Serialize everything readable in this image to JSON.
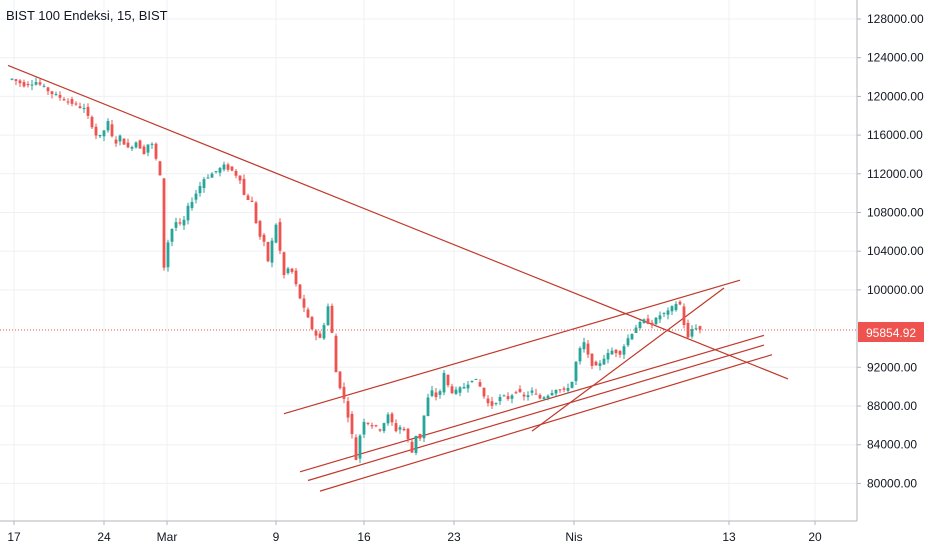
{
  "chart_data": {
    "type": "candlestick",
    "title": "BIST 100 Endeksi, 15, BIST",
    "colors": {
      "up": "#26a69a",
      "down": "#ef5350",
      "trendline": "#c0392b",
      "grid": "#eef0f3",
      "price_line": "#ef5350"
    },
    "y_axis": {
      "ylim": [
        75500,
        130000
      ],
      "ticks": [
        "128000.00",
        "124000.00",
        "120000.00",
        "116000.00",
        "112000.00",
        "108000.00",
        "104000.00",
        "100000.00",
        "92000.00",
        "88000.00",
        "84000.00",
        "80000.00"
      ]
    },
    "x_axis": {
      "ticks": [
        "17",
        "24",
        "Mar",
        "9",
        "16",
        "23",
        "Nis",
        "13",
        "20"
      ]
    },
    "current_price": {
      "value": 95854.92,
      "label": "95854.92"
    },
    "price_path": [
      {
        "t": 0,
        "v": 121800
      },
      {
        "t": 3,
        "v": 121200
      },
      {
        "t": 6,
        "v": 121500
      },
      {
        "t": 10,
        "v": 120300
      },
      {
        "t": 14,
        "v": 119500
      },
      {
        "t": 18,
        "v": 118700
      },
      {
        "t": 20,
        "v": 117000
      },
      {
        "t": 21.5,
        "v": 115500
      },
      {
        "t": 23,
        "v": 116500
      },
      {
        "t": 24,
        "v": 117300
      },
      {
        "t": 25.5,
        "v": 115000
      },
      {
        "t": 27,
        "v": 115800
      },
      {
        "t": 29,
        "v": 114600
      },
      {
        "t": 31,
        "v": 115300
      },
      {
        "t": 33,
        "v": 114200
      },
      {
        "t": 34.5,
        "v": 115500
      },
      {
        "t": 35.5,
        "v": 114500
      },
      {
        "t": 36.5,
        "v": 112500
      },
      {
        "t": 37.3,
        "v": 111200
      },
      {
        "t": 37.9,
        "v": 102000
      },
      {
        "t": 38.3,
        "v": 103500
      },
      {
        "t": 39.5,
        "v": 106000
      },
      {
        "t": 41,
        "v": 107000
      },
      {
        "t": 42.5,
        "v": 106500
      },
      {
        "t": 44,
        "v": 108500
      },
      {
        "t": 46,
        "v": 110000
      },
      {
        "t": 48,
        "v": 111500
      },
      {
        "t": 50,
        "v": 112000
      },
      {
        "t": 53,
        "v": 112800
      },
      {
        "t": 55,
        "v": 112300
      },
      {
        "t": 57,
        "v": 111500
      },
      {
        "t": 58,
        "v": 109800
      },
      {
        "t": 60,
        "v": 109000
      },
      {
        "t": 61,
        "v": 107000
      },
      {
        "t": 62,
        "v": 105500
      },
      {
        "t": 63,
        "v": 104800
      },
      {
        "t": 64,
        "v": 103000
      },
      {
        "t": 65,
        "v": 105000
      },
      {
        "t": 66,
        "v": 106800
      },
      {
        "t": 67,
        "v": 104000
      },
      {
        "t": 68,
        "v": 101500
      },
      {
        "t": 69.5,
        "v": 102500
      },
      {
        "t": 71,
        "v": 100500
      },
      {
        "t": 72.5,
        "v": 98500
      },
      {
        "t": 74,
        "v": 97000
      },
      {
        "t": 75.5,
        "v": 95500
      },
      {
        "t": 77,
        "v": 95000
      },
      {
        "t": 78,
        "v": 96500
      },
      {
        "t": 79,
        "v": 98300
      },
      {
        "t": 80,
        "v": 95500
      },
      {
        "t": 81,
        "v": 91500
      },
      {
        "t": 82,
        "v": 90000
      },
      {
        "t": 83.5,
        "v": 88000
      },
      {
        "t": 85,
        "v": 85000
      },
      {
        "t": 86,
        "v": 82500
      },
      {
        "t": 87,
        "v": 85000
      },
      {
        "t": 88,
        "v": 86500
      },
      {
        "t": 90,
        "v": 86000
      },
      {
        "t": 92,
        "v": 85600
      },
      {
        "t": 94,
        "v": 87000
      },
      {
        "t": 96,
        "v": 85500
      },
      {
        "t": 97.5,
        "v": 86000
      },
      {
        "t": 99,
        "v": 84500
      },
      {
        "t": 100,
        "v": 83200
      },
      {
        "t": 101,
        "v": 85000
      },
      {
        "t": 102,
        "v": 84700
      },
      {
        "t": 103,
        "v": 87000
      },
      {
        "t": 104,
        "v": 88800
      },
      {
        "t": 105,
        "v": 89500
      },
      {
        "t": 106.5,
        "v": 88700
      },
      {
        "t": 108,
        "v": 91300
      },
      {
        "t": 109.5,
        "v": 89500
      },
      {
        "t": 111,
        "v": 89500
      },
      {
        "t": 113,
        "v": 90000
      },
      {
        "t": 115,
        "v": 90800
      },
      {
        "t": 116.5,
        "v": 90500
      },
      {
        "t": 118,
        "v": 89000
      },
      {
        "t": 119.5,
        "v": 87900
      },
      {
        "t": 121,
        "v": 88500
      },
      {
        "t": 122.5,
        "v": 89000
      },
      {
        "t": 124,
        "v": 88800
      },
      {
        "t": 126,
        "v": 89600
      },
      {
        "t": 128,
        "v": 88900
      },
      {
        "t": 130,
        "v": 89500
      },
      {
        "t": 132,
        "v": 88800
      },
      {
        "t": 134,
        "v": 89200
      },
      {
        "t": 136,
        "v": 89800
      },
      {
        "t": 138,
        "v": 89500
      },
      {
        "t": 140,
        "v": 90500
      },
      {
        "t": 141.5,
        "v": 93500
      },
      {
        "t": 143,
        "v": 94500
      },
      {
        "t": 144.5,
        "v": 92500
      },
      {
        "t": 146,
        "v": 92000
      },
      {
        "t": 148,
        "v": 93000
      },
      {
        "t": 150,
        "v": 93700
      },
      {
        "t": 152,
        "v": 93500
      },
      {
        "t": 154,
        "v": 95000
      },
      {
        "t": 156,
        "v": 96200
      },
      {
        "t": 158,
        "v": 96800
      },
      {
        "t": 160,
        "v": 96500
      },
      {
        "t": 162,
        "v": 97400
      },
      {
        "t": 164,
        "v": 97700
      },
      {
        "t": 166,
        "v": 98600
      },
      {
        "t": 167.5,
        "v": 98400
      },
      {
        "t": 168.5,
        "v": 94500
      },
      {
        "t": 169.5,
        "v": 95500
      },
      {
        "t": 170.5,
        "v": 96400
      },
      {
        "t": 171.5,
        "v": 95900
      },
      {
        "t": 172.5,
        "v": 95854.92
      }
    ],
    "trendlines": [
      {
        "name": "falling-resistance",
        "points": [
          {
            "t": -1,
            "v": 123200
          },
          {
            "t": 194,
            "v": 90800
          }
        ]
      },
      {
        "name": "channel-upper",
        "points": [
          {
            "t": 68,
            "v": 87200
          },
          {
            "t": 182,
            "v": 101000
          }
        ]
      },
      {
        "name": "rising-support",
        "points": [
          {
            "t": 130,
            "v": 85400
          },
          {
            "t": 178,
            "v": 100200
          }
        ]
      },
      {
        "name": "channel-lower-1",
        "points": [
          {
            "t": 72,
            "v": 81200
          },
          {
            "t": 188,
            "v": 95300
          }
        ]
      },
      {
        "name": "channel-lower-2",
        "points": [
          {
            "t": 74,
            "v": 80300
          },
          {
            "t": 188,
            "v": 94300
          }
        ]
      },
      {
        "name": "channel-lower-3",
        "points": [
          {
            "t": 77,
            "v": 79200
          },
          {
            "t": 190,
            "v": 93300
          }
        ]
      }
    ]
  }
}
